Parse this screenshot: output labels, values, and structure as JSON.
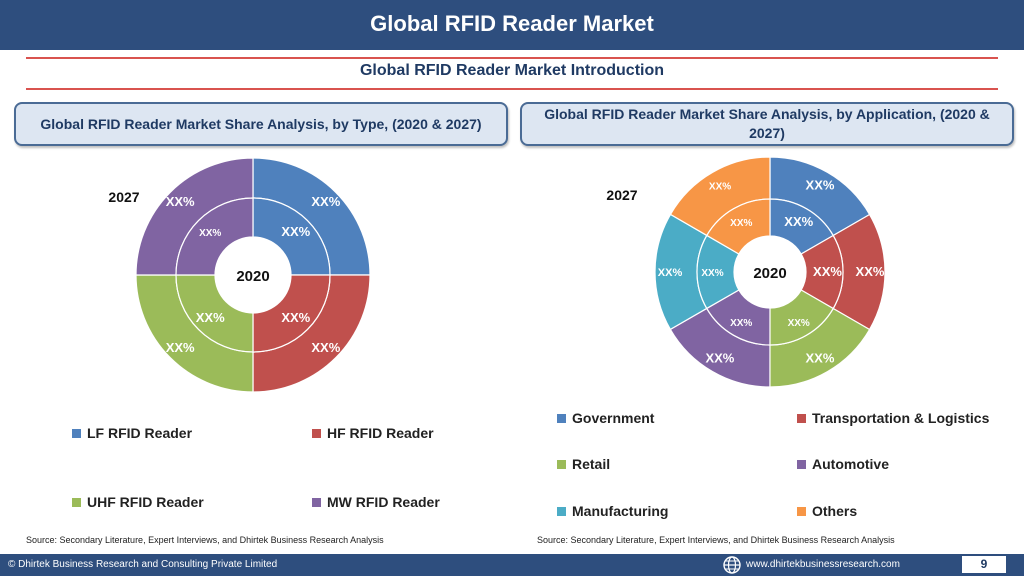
{
  "header": {
    "title": "Global RFID Reader Market"
  },
  "subtitle": "Global RFID Reader Market  Introduction",
  "left_panel": {
    "title": "Global RFID Reader Market  Share Analysis, by Type, (2020 & 2027)"
  },
  "right_panel": {
    "title": "Global RFID Reader Market  Share Analysis, by Application, (2020 & 2027)"
  },
  "chart_data": [
    {
      "type": "pie",
      "title": "Global RFID Reader Market  Share Analysis, by Type, (2020 & 2027)",
      "outer_ring_label": "2027",
      "inner_ring_label": "2020",
      "categories": [
        "LF RFID Reader",
        "HF RFID Reader",
        "UHF RFID Reader",
        "MW RFID Reader"
      ],
      "colors": [
        "#4f81bd",
        "#c0504d",
        "#9bbb59",
        "#8064a2"
      ],
      "series": [
        {
          "name": "2027",
          "values": [
            25,
            25,
            25,
            25
          ],
          "labels": [
            "XX%",
            "XX%",
            "XX%",
            "XX%"
          ]
        },
        {
          "name": "2020",
          "values": [
            25,
            25,
            25,
            25
          ],
          "labels": [
            "XX%",
            "XX%",
            "XX%",
            "XX%"
          ]
        }
      ]
    },
    {
      "type": "pie",
      "title": "Global RFID Reader Market  Share Analysis, by Application, (2020 & 2027)",
      "outer_ring_label": "2027",
      "inner_ring_label": "2020",
      "categories": [
        "Government",
        "Transportation & Logistics",
        "Retail",
        "Automotive",
        "Manufacturing",
        "Others"
      ],
      "colors": [
        "#4f81bd",
        "#c0504d",
        "#9bbb59",
        "#8064a2",
        "#4bacc6",
        "#f79646"
      ],
      "series": [
        {
          "name": "2027",
          "values": [
            16.67,
            16.67,
            16.67,
            16.67,
            16.67,
            16.65
          ],
          "labels": [
            "XX%",
            "XX%",
            "XX%",
            "XX%",
            "XX%",
            "XX%"
          ]
        },
        {
          "name": "2020",
          "values": [
            16.67,
            16.67,
            16.67,
            16.67,
            16.67,
            16.65
          ],
          "labels": [
            "XX%",
            "XX%",
            "XX%",
            "XX%",
            "XX%",
            "XX%"
          ]
        }
      ]
    }
  ],
  "source_text": "Source: Secondary Literature, Expert Interviews, and Dhirtek Business Research Analysis",
  "footer": {
    "copyright": "© Dhirtek Business Research and Consulting Private Limited",
    "website": "www.dhirtekbusinessresearch.com",
    "page_number": "9",
    "globe_icon": "globe-icon"
  }
}
